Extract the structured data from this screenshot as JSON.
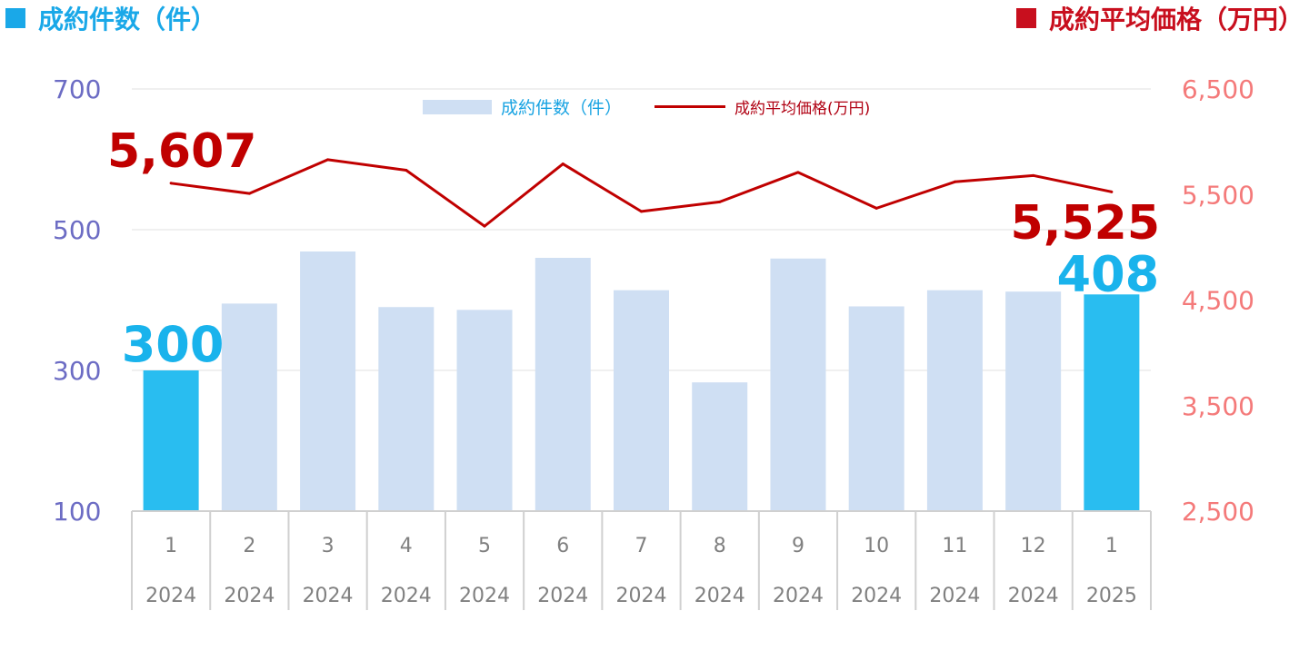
{
  "header": {
    "left_title": "成約件数（件）",
    "right_title": "成約平均価格（万円）"
  },
  "legend": {
    "bar_label": "成約件数（件）",
    "line_label": "成約平均価格(万円)"
  },
  "colors": {
    "bar_normal": "#CFDFF3",
    "bar_highlight": "#29BDF0",
    "line": "#C00000",
    "left_axis": "#6C6CC4",
    "right_axis": "#F47A7A",
    "header_left": "#1AA8E8",
    "header_right": "#C80F1E",
    "callout_bar": "#19B3EC",
    "callout_line": "#C00000"
  },
  "chart_data": {
    "type": "bar+line",
    "categories": [
      {
        "month": "1",
        "year": "2024"
      },
      {
        "month": "2",
        "year": "2024"
      },
      {
        "month": "3",
        "year": "2024"
      },
      {
        "month": "4",
        "year": "2024"
      },
      {
        "month": "5",
        "year": "2024"
      },
      {
        "month": "6",
        "year": "2024"
      },
      {
        "month": "7",
        "year": "2024"
      },
      {
        "month": "8",
        "year": "2024"
      },
      {
        "month": "9",
        "year": "2024"
      },
      {
        "month": "10",
        "year": "2024"
      },
      {
        "month": "11",
        "year": "2024"
      },
      {
        "month": "12",
        "year": "2024"
      },
      {
        "month": "1",
        "year": "2025"
      }
    ],
    "series": [
      {
        "name": "成約件数（件）",
        "axis": "left",
        "kind": "bar",
        "values": [
          300,
          395,
          469,
          390,
          386,
          460,
          414,
          283,
          459,
          391,
          414,
          412,
          408
        ],
        "highlight": [
          0,
          12
        ]
      },
      {
        "name": "成約平均価格(万円)",
        "axis": "right",
        "kind": "line",
        "values": [
          5607,
          5510,
          5830,
          5730,
          5200,
          5790,
          5340,
          5430,
          5710,
          5370,
          5620,
          5680,
          5525
        ]
      }
    ],
    "left_axis": {
      "ticks": [
        "700",
        "500",
        "300",
        "100"
      ],
      "min": 100,
      "max": 700
    },
    "right_axis": {
      "ticks": [
        "6,500",
        "5,500",
        "4,500",
        "3,500",
        "2,500"
      ],
      "min": 2500,
      "max": 6500
    },
    "callouts": {
      "first_bar": "300",
      "last_bar": "408",
      "first_line": "5,607",
      "last_line": "5,525"
    },
    "gridlines": true
  }
}
